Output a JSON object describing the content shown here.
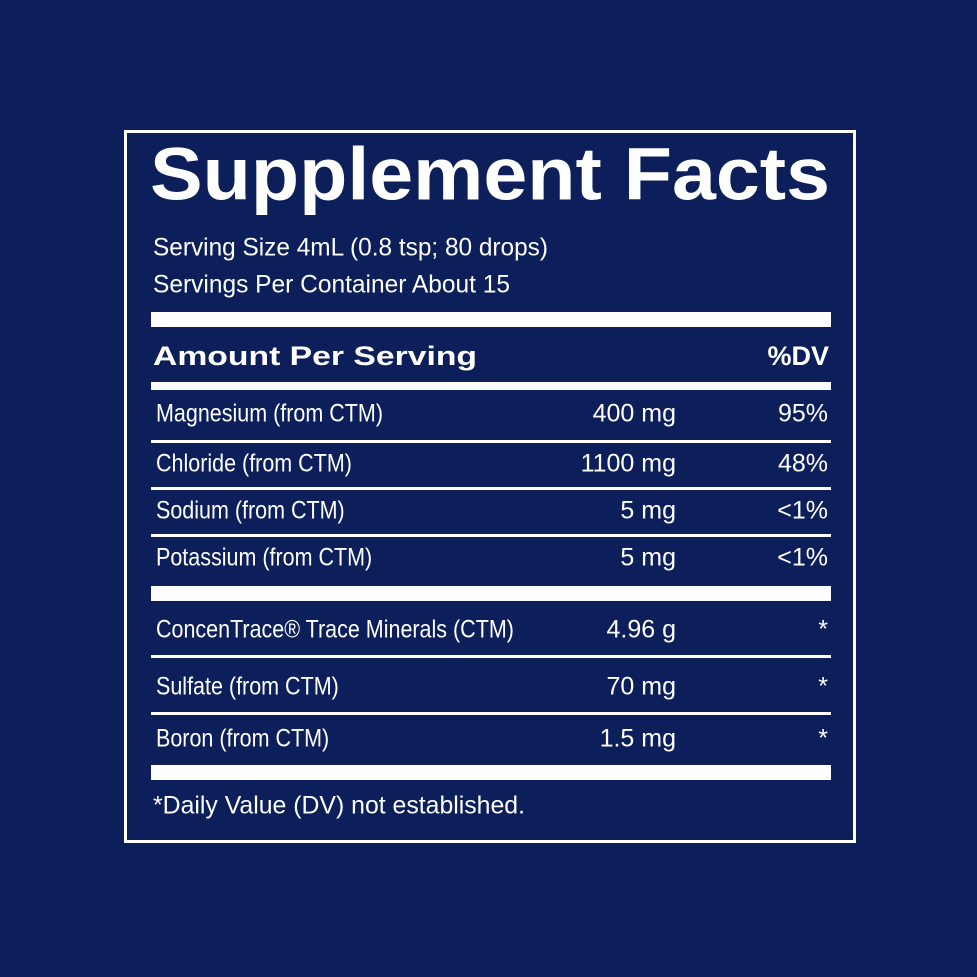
{
  "header": {
    "title": "Supplement Facts",
    "serving_size": "Serving Size 4mL (0.8 tsp; 80 drops)",
    "servings_per_container": "Servings Per Container About 15"
  },
  "table": {
    "columns": [
      "Amount Per Serving",
      "%DV"
    ],
    "rows": [
      [
        "Magnesium (from CTM)",
        "400 mg",
        "95%"
      ],
      [
        "Chloride (from CTM)",
        "1100 mg",
        "48%"
      ],
      [
        "Sodium (from CTM)",
        "5 mg",
        "<1%"
      ],
      [
        "Potassium (from CTM)",
        "5 mg",
        "<1%"
      ],
      [
        "ConcenTrace® Trace Minerals (CTM)",
        "4.96 g",
        "*"
      ],
      [
        "Sulfate (from CTM)",
        "70 mg",
        "*"
      ],
      [
        "Boron (from CTM)",
        "1.5 mg",
        "*"
      ]
    ]
  },
  "footnote": "*Daily Value (DV) not established."
}
